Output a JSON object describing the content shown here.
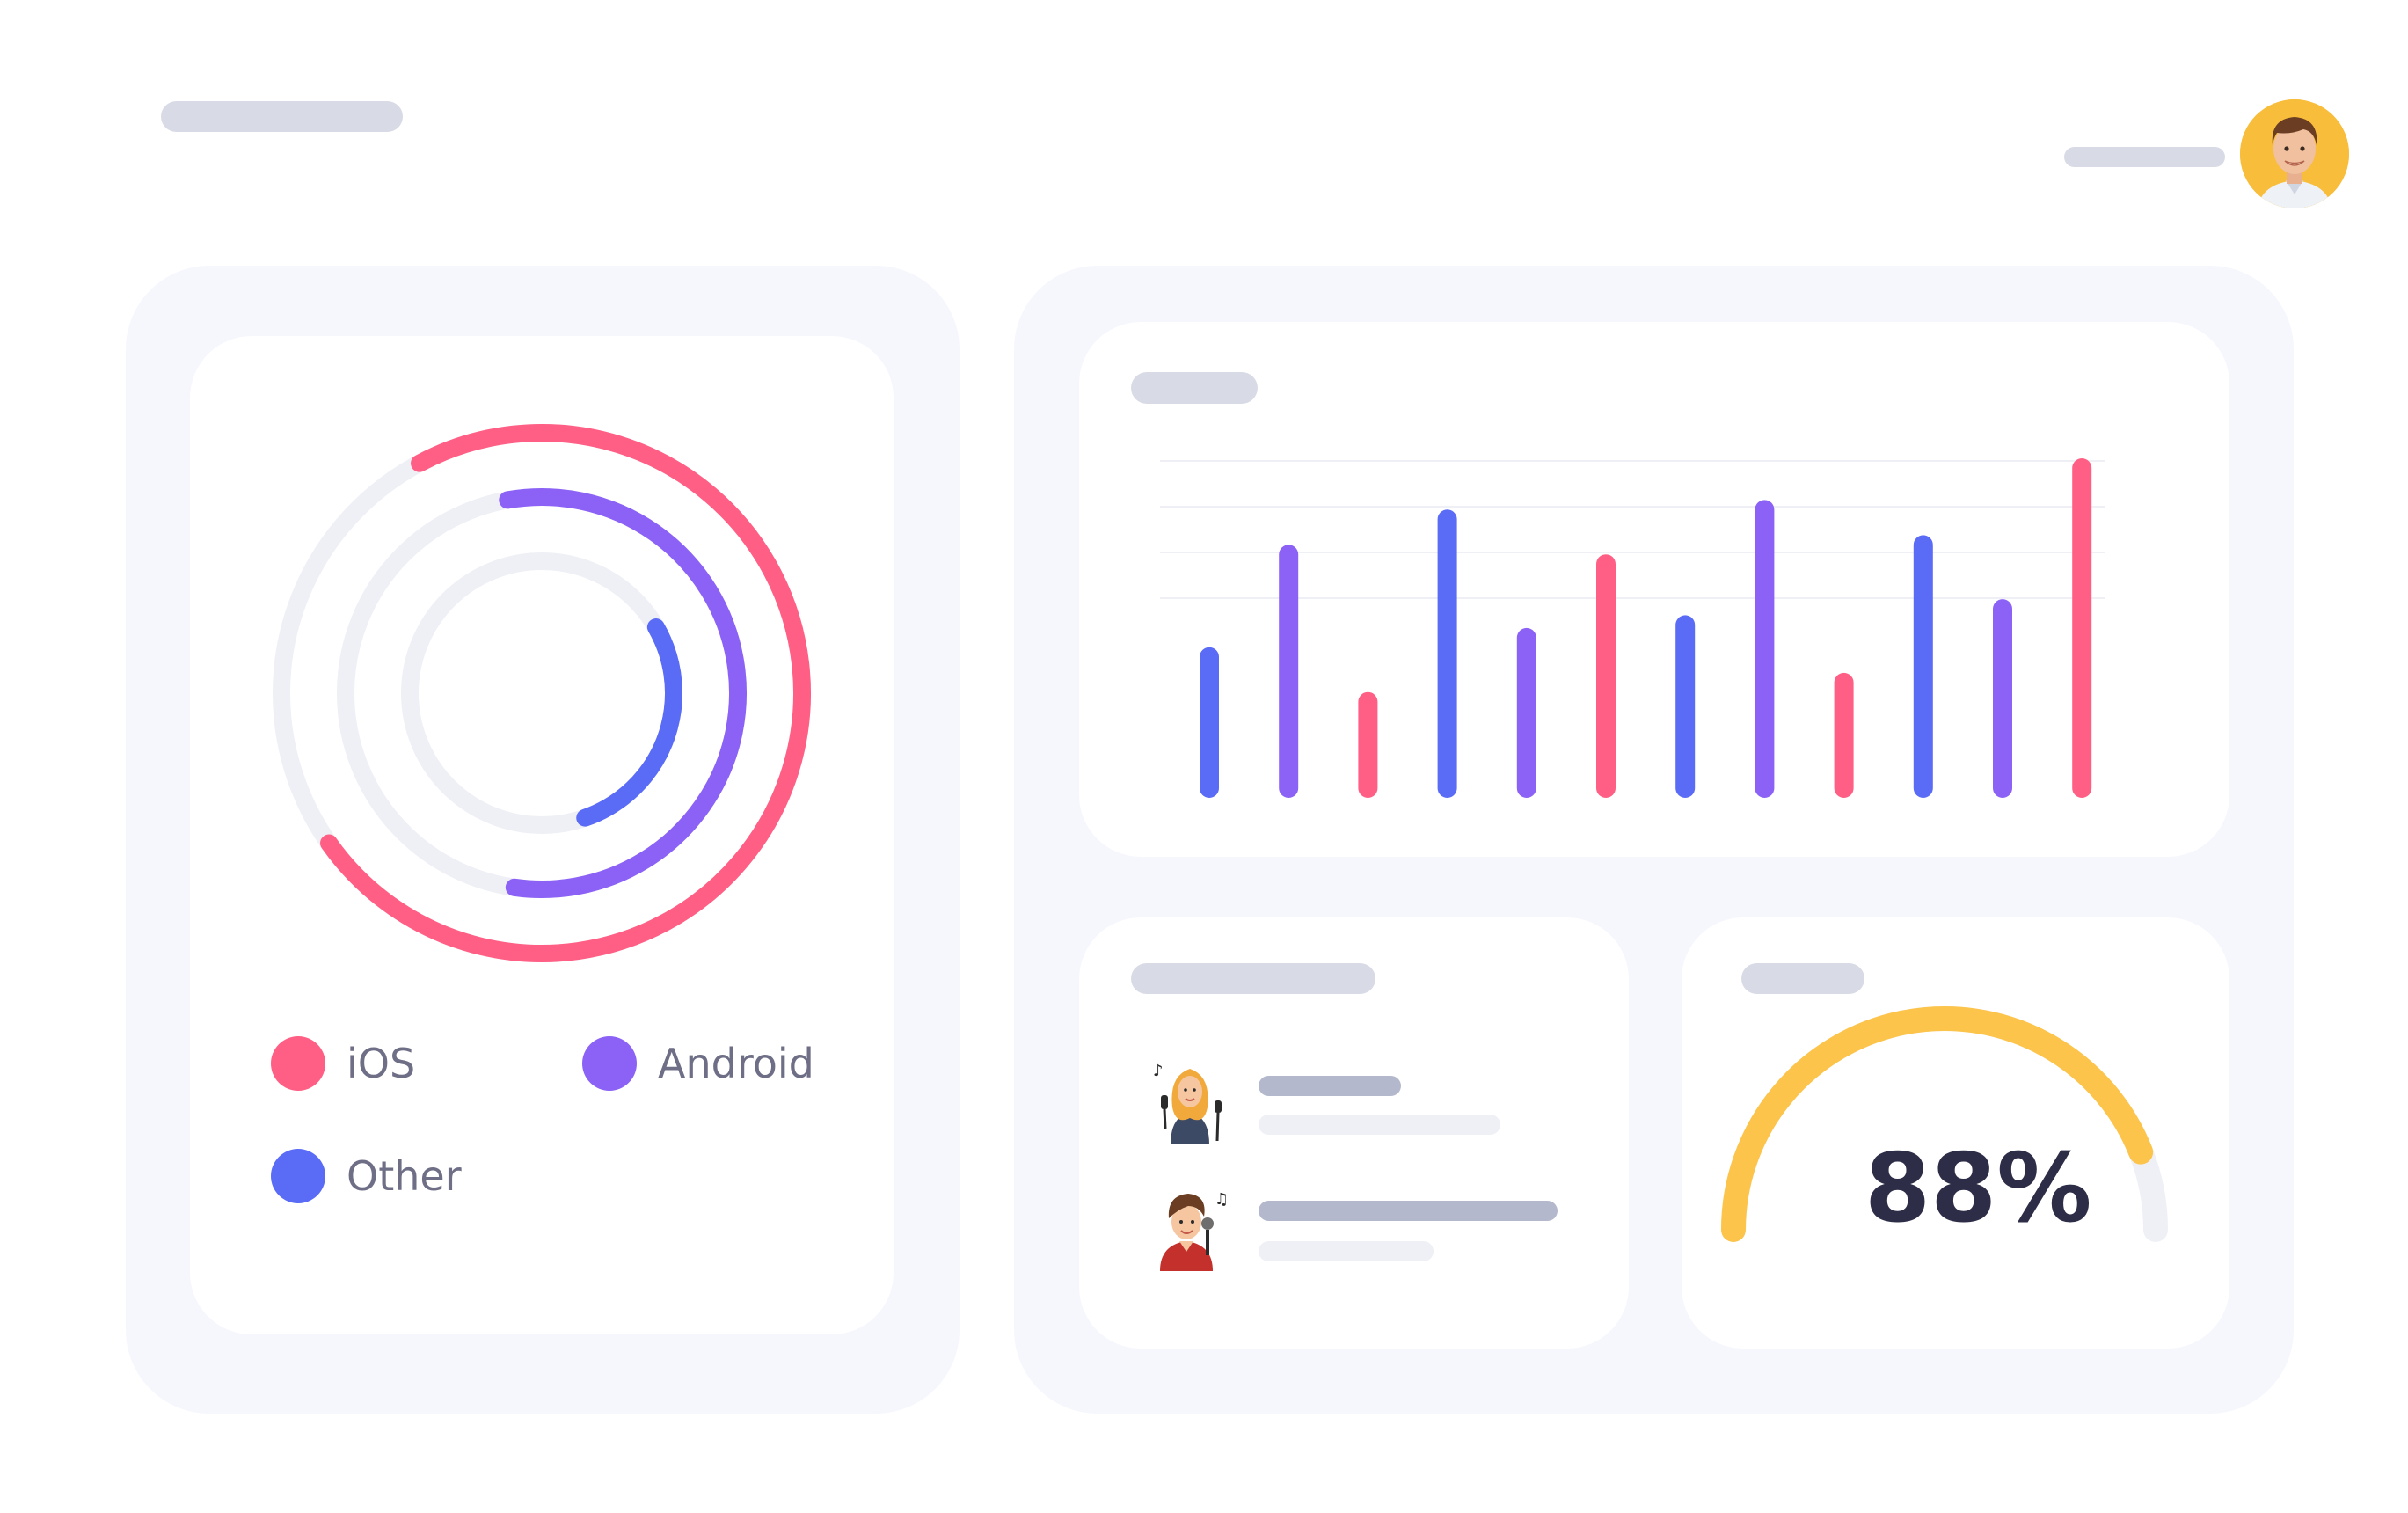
{
  "theme": {
    "ios_color": "#ff5f84",
    "android_color": "#8b62f5",
    "other_color": "#5a6bf6",
    "gauge_color": "#fcc44a",
    "track_color": "#eff0f5",
    "placeholder_color": "#d8dbe6"
  },
  "header": {
    "avatar_icon": "user-avatar-photo"
  },
  "device_share": {
    "legend": [
      {
        "label": "iOS",
        "color": "#ff5f84"
      },
      {
        "label": "Android",
        "color": "#8b62f5"
      },
      {
        "label": "Other",
        "color": "#5a6bf6"
      }
    ]
  },
  "list_card": {
    "items": [
      {
        "icon": "female-singer-icon"
      },
      {
        "icon": "male-singer-icon"
      }
    ]
  },
  "gauge": {
    "label": "88%",
    "value": 0.88
  },
  "chart_data": [
    {
      "type": "pie",
      "subtype": "radial-rings",
      "series": [
        {
          "name": "iOS",
          "fraction": 0.73
        },
        {
          "name": "Android",
          "fraction": 0.55
        },
        {
          "name": "Other",
          "fraction": 0.28
        }
      ]
    },
    {
      "type": "bar",
      "values": [
        0.41,
        0.73,
        0.27,
        0.84,
        0.47,
        0.7,
        0.51,
        0.87,
        0.33,
        0.76,
        0.56,
        1.0
      ],
      "colors": [
        "#5a6bf6",
        "#8b62f5",
        "#ff5f84",
        "#5a6bf6",
        "#8b62f5",
        "#ff5f84",
        "#5a6bf6",
        "#8b62f5",
        "#ff5f84",
        "#5a6bf6",
        "#8b62f5",
        "#ff5f84"
      ],
      "ylim": [
        0,
        1
      ],
      "grid": true
    }
  ]
}
